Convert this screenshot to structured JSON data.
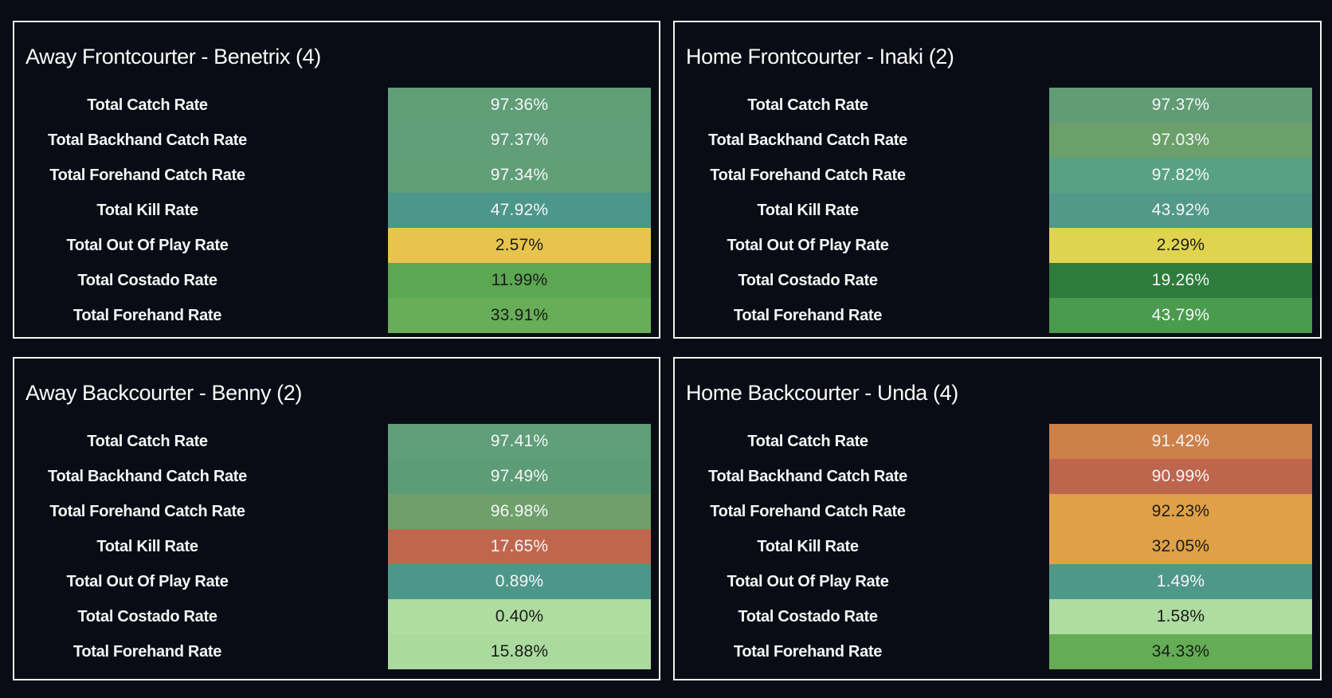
{
  "page": {
    "background": "#0a0c15",
    "panel_border": "#f2f2f2",
    "light_text": "#f5f6f7",
    "dark_text": "#1a1c1a"
  },
  "panels": [
    {
      "title": "Away Frontcourter - Benetrix (4)",
      "rows": [
        {
          "label": "Total Catch Rate",
          "value": "97.36%",
          "bg": "#609e78",
          "fg": "#f5f6f7"
        },
        {
          "label": "Total Backhand Catch Rate",
          "value": "97.37%",
          "bg": "#619e79",
          "fg": "#f5f6f7"
        },
        {
          "label": "Total Forehand Catch Rate",
          "value": "97.34%",
          "bg": "#609e78",
          "fg": "#f5f6f7"
        },
        {
          "label": "Total Kill Rate",
          "value": "47.92%",
          "bg": "#4c968a",
          "fg": "#f5f6f7"
        },
        {
          "label": "Total Out Of Play Rate",
          "value": "2.57%",
          "bg": "#e7c44d",
          "fg": "#1a1c1a"
        },
        {
          "label": "Total Costado Rate",
          "value": "11.99%",
          "bg": "#5ca751",
          "fg": "#1a1c1a"
        },
        {
          "label": "Total Forehand Rate",
          "value": "33.91%",
          "bg": "#68ae58",
          "fg": "#1a1c1a"
        }
      ]
    },
    {
      "title": "Home Frontcourter - Inaki (2)",
      "rows": [
        {
          "label": "Total Catch Rate",
          "value": "97.37%",
          "bg": "#619c76",
          "fg": "#f5f6f7"
        },
        {
          "label": "Total Backhand Catch Rate",
          "value": "97.03%",
          "bg": "#6ba06b",
          "fg": "#f5f6f7"
        },
        {
          "label": "Total Forehand Catch Rate",
          "value": "97.82%",
          "bg": "#58a184",
          "fg": "#f5f6f7"
        },
        {
          "label": "Total Kill Rate",
          "value": "43.92%",
          "bg": "#52998a",
          "fg": "#f5f6f7"
        },
        {
          "label": "Total Out Of Play Rate",
          "value": "2.29%",
          "bg": "#e0d44f",
          "fg": "#1a1c1a"
        },
        {
          "label": "Total Costado Rate",
          "value": "19.26%",
          "bg": "#2e7c3c",
          "fg": "#f5f6f7"
        },
        {
          "label": "Total Forehand Rate",
          "value": "43.79%",
          "bg": "#4a9b4e",
          "fg": "#f5f6f7"
        }
      ]
    },
    {
      "title": "Away Backcourter - Benny (2)",
      "rows": [
        {
          "label": "Total Catch Rate",
          "value": "97.41%",
          "bg": "#5f9e78",
          "fg": "#f5f6f7"
        },
        {
          "label": "Total Backhand Catch Rate",
          "value": "97.49%",
          "bg": "#5c9c77",
          "fg": "#f5f6f7"
        },
        {
          "label": "Total Forehand Catch Rate",
          "value": "96.98%",
          "bg": "#6fa06b",
          "fg": "#f5f6f7"
        },
        {
          "label": "Total Kill Rate",
          "value": "17.65%",
          "bg": "#c1664e",
          "fg": "#f5f6f7"
        },
        {
          "label": "Total Out Of Play Rate",
          "value": "0.89%",
          "bg": "#4d978a",
          "fg": "#f5f6f7"
        },
        {
          "label": "Total Costado Rate",
          "value": "0.40%",
          "bg": "#afdca1",
          "fg": "#1a1c1a"
        },
        {
          "label": "Total Forehand Rate",
          "value": "15.88%",
          "bg": "#abda9e",
          "fg": "#1a1c1a"
        }
      ]
    },
    {
      "title": "Home Backcourter - Unda (4)",
      "rows": [
        {
          "label": "Total Catch Rate",
          "value": "91.42%",
          "bg": "#cd8049",
          "fg": "#f5f6f7"
        },
        {
          "label": "Total Backhand Catch Rate",
          "value": "90.99%",
          "bg": "#be654e",
          "fg": "#f5f6f7"
        },
        {
          "label": "Total Forehand Catch Rate",
          "value": "92.23%",
          "bg": "#e0a048",
          "fg": "#1a1c1a"
        },
        {
          "label": "Total Kill Rate",
          "value": "32.05%",
          "bg": "#e0a048",
          "fg": "#1a1c1a"
        },
        {
          "label": "Total Out Of Play Rate",
          "value": "1.49%",
          "bg": "#4e988a",
          "fg": "#f5f6f7"
        },
        {
          "label": "Total Costado Rate",
          "value": "1.58%",
          "bg": "#afdca1",
          "fg": "#1a1c1a"
        },
        {
          "label": "Total Forehand Rate",
          "value": "34.33%",
          "bg": "#64ac56",
          "fg": "#1a1c1a"
        }
      ]
    }
  ],
  "chart_data": [
    {
      "type": "table",
      "title": "Away Frontcourter - Benetrix (4)",
      "categories": [
        "Total Catch Rate",
        "Total Backhand Catch Rate",
        "Total Forehand Catch Rate",
        "Total Kill Rate",
        "Total Out Of Play Rate",
        "Total Costado Rate",
        "Total Forehand Rate"
      ],
      "values": [
        97.36,
        97.37,
        97.34,
        47.92,
        2.57,
        11.99,
        33.91
      ],
      "value_unit": "percent",
      "color_encoding": "per-cell heatmap (green/teal/yellow/orange/red)"
    },
    {
      "type": "table",
      "title": "Home Frontcourter - Inaki (2)",
      "categories": [
        "Total Catch Rate",
        "Total Backhand Catch Rate",
        "Total Forehand Catch Rate",
        "Total Kill Rate",
        "Total Out Of Play Rate",
        "Total Costado Rate",
        "Total Forehand Rate"
      ],
      "values": [
        97.37,
        97.03,
        97.82,
        43.92,
        2.29,
        19.26,
        43.79
      ],
      "value_unit": "percent",
      "color_encoding": "per-cell heatmap (green/teal/yellow/orange/red)"
    },
    {
      "type": "table",
      "title": "Away Backcourter - Benny (2)",
      "categories": [
        "Total Catch Rate",
        "Total Backhand Catch Rate",
        "Total Forehand Catch Rate",
        "Total Kill Rate",
        "Total Out Of Play Rate",
        "Total Costado Rate",
        "Total Forehand Rate"
      ],
      "values": [
        97.41,
        97.49,
        96.98,
        17.65,
        0.89,
        0.4,
        15.88
      ],
      "value_unit": "percent",
      "color_encoding": "per-cell heatmap (green/teal/yellow/orange/red)"
    },
    {
      "type": "table",
      "title": "Home Backcourter - Unda (4)",
      "categories": [
        "Total Catch Rate",
        "Total Backhand Catch Rate",
        "Total Forehand Catch Rate",
        "Total Kill Rate",
        "Total Out Of Play Rate",
        "Total Costado Rate",
        "Total Forehand Rate"
      ],
      "values": [
        91.42,
        90.99,
        92.23,
        32.05,
        1.49,
        1.58,
        34.33
      ],
      "value_unit": "percent",
      "color_encoding": "per-cell heatmap (green/teal/yellow/orange/red)"
    }
  ]
}
